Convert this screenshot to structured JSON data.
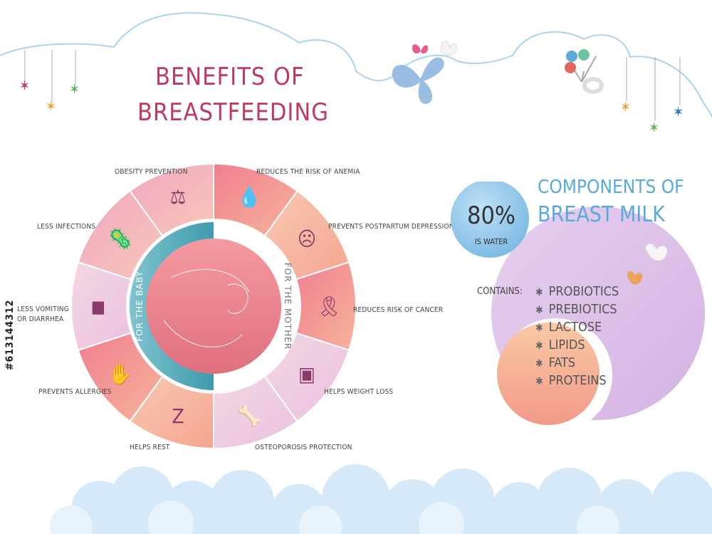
{
  "title": {
    "line1": "BENEFITS OF",
    "line2": "BREASTFEEDING"
  },
  "wheel": {
    "inner_left": "FOR THE BABY",
    "inner_right": "FOR THE MOTHER",
    "segments": [
      {
        "label": "OBESITY PREVENTION",
        "icon": "baby-scale-icon",
        "side": "baby"
      },
      {
        "label": "REDUCES THE RISK OF ANEMIA",
        "icon": "blood-drop-icon",
        "side": "mother"
      },
      {
        "label": "PREVENTS POSTPARTUM DEPRESSION",
        "icon": "sad-face-icon",
        "side": "mother"
      },
      {
        "label": "REDUCES RISK OF CANCER",
        "icon": "pink-ribbon-icon",
        "side": "mother"
      },
      {
        "label": "HELPS WEIGHT LOSS",
        "icon": "bathroom-scale-icon",
        "side": "mother"
      },
      {
        "label": "OSTEOPOROSIS PROTECTION",
        "icon": "bone-icon",
        "side": "mother"
      },
      {
        "label": "HELPS REST",
        "icon": "sleep-zzz-icon",
        "side": "baby"
      },
      {
        "label": "PREVENTS ALLERGIES",
        "icon": "allergy-hand-icon",
        "side": "baby"
      },
      {
        "label": "LESS VOMITING\nOR DIARRHEA",
        "icon": "diaper-icon",
        "side": "baby"
      },
      {
        "label": "LESS INFECTIONS",
        "icon": "bacteria-icon",
        "side": "baby"
      }
    ]
  },
  "components": {
    "title_line1": "COMPONENTS OF",
    "title_line2": "BREAST MILK",
    "water_percent": "80%",
    "water_label": "IS WATER",
    "contains_label": "CONTAINS:",
    "items": [
      "PROBIOTICS",
      "PREBIOTICS",
      "LACTOSE",
      "LIPIDS",
      "FATS",
      "PROTEINS"
    ]
  },
  "watermark_id": "#613144312",
  "colors": {
    "title": "#c0395e",
    "accent_blue": "#5aa9dd",
    "teal": "#4aa6b8",
    "pink": "#ec8fb0",
    "peach": "#f6b08a",
    "lavender": "#d8b6e6"
  }
}
